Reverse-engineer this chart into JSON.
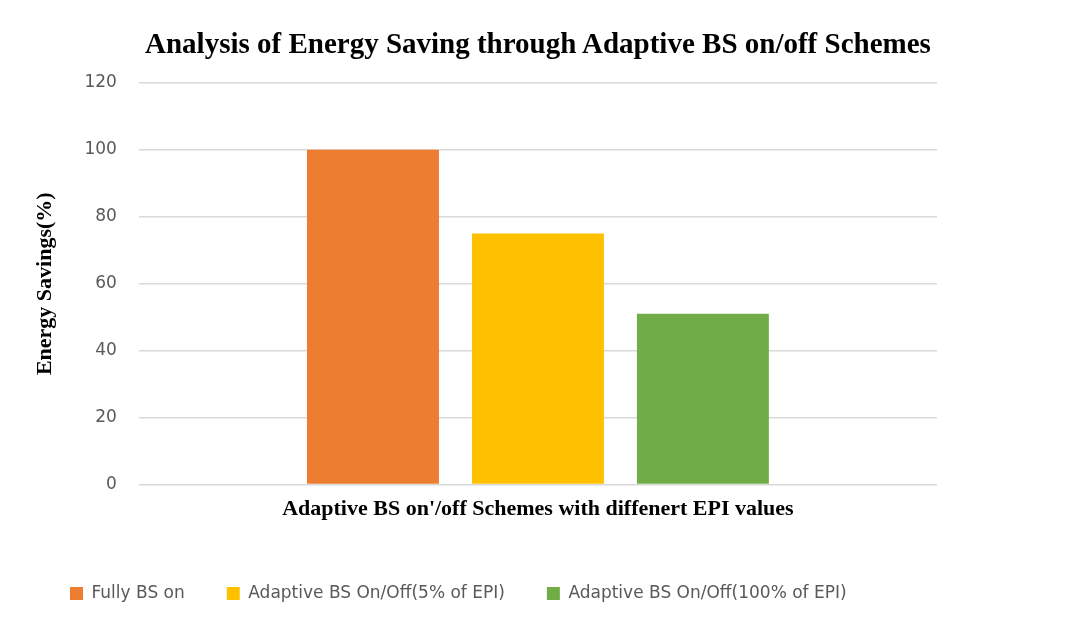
{
  "chart_data": {
    "type": "bar",
    "title": "Analysis of Energy Saving through Adaptive BS on/off Schemes",
    "xlabel": "Adaptive BS on'/off Schemes with diffenert EPI values",
    "ylabel": "Energy Savings(%)",
    "categories": [
      null
    ],
    "series": [
      {
        "name": "Fully BS on",
        "color": "#ed7d31",
        "values": [
          100
        ]
      },
      {
        "name": "Adaptive BS On/Off(5% of EPI)",
        "color": "#ffc000",
        "values": [
          75
        ]
      },
      {
        "name": "Adaptive BS On/Off(100% of EPI)",
        "color": "#70ad47",
        "values": [
          51
        ]
      }
    ],
    "ylim": [
      0,
      120
    ],
    "yticks": [
      0,
      20,
      40,
      60,
      80,
      100,
      120
    ],
    "grid": "y",
    "legend": "bottom"
  }
}
